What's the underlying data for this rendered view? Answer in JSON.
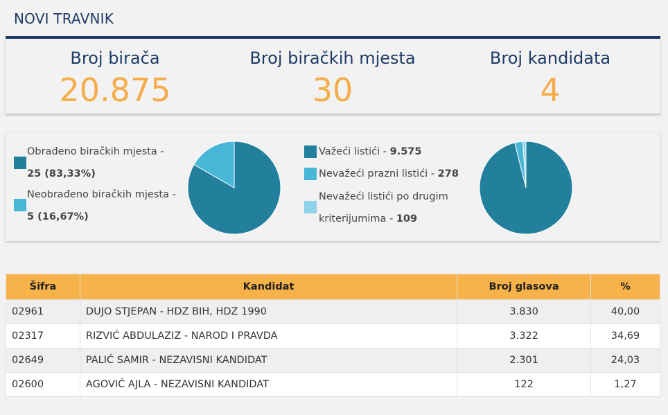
{
  "header": {
    "title": "NOVI TRAVNIK"
  },
  "stats": [
    {
      "label": "Broj birača",
      "value": "20.875"
    },
    {
      "label": "Broj biračkih mjesta",
      "value": "30"
    },
    {
      "label": "Broj kandidata",
      "value": "4"
    }
  ],
  "polling_chart": {
    "legend": [
      {
        "text": "Obrađeno biračkih mjesta -",
        "value": "25 (83,33%)",
        "color": "#22809c"
      },
      {
        "text": "Neobrađeno biračkih mjesta -",
        "value": "5 (16,67%)",
        "color": "#48b6d6"
      }
    ],
    "shares": [
      83.33,
      16.67
    ]
  },
  "ballots_chart": {
    "legend": [
      {
        "text": "Važeći listići -",
        "value": "9.575",
        "color": "#22809c"
      },
      {
        "text": "Nevažeći prazni listići -",
        "value": "278",
        "color": "#48b6d6"
      },
      {
        "text1": "Nevažeći listići po drugim",
        "text2": "kriterijumima -",
        "value": "109",
        "color": "#8fd3ea"
      }
    ],
    "values": [
      9575,
      278,
      109
    ]
  },
  "table": {
    "headers": [
      "Šifra",
      "Kandidat",
      "Broj glasova",
      "%"
    ],
    "rows": [
      {
        "code": "02961",
        "name": "DUJO STJEPAN - HDZ BIH, HDZ 1990",
        "votes": "3.830",
        "pct": "40,00"
      },
      {
        "code": "02317",
        "name": "RIZVIĆ ABDULAZIZ - NAROD I PRAVDA",
        "votes": "3.322",
        "pct": "34,69"
      },
      {
        "code": "02649",
        "name": "PALIĆ SAMIR - NEZAVISNI KANDIDAT",
        "votes": "2.301",
        "pct": "24,03"
      },
      {
        "code": "02600",
        "name": "AGOVIĆ AJLA - NEZAVISNI KANDIDAT",
        "votes": "122",
        "pct": "1,27"
      }
    ]
  }
}
